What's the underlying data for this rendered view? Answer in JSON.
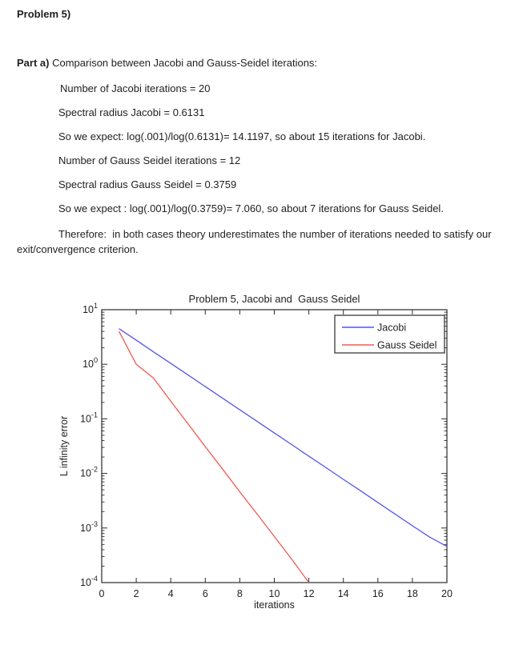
{
  "doc": {
    "heading": "Problem 5)",
    "part_a_label": "Part a)",
    "part_a_text": " Comparison between Jacobi and Gauss-Seidel iterations:",
    "lines": [
      "Number of Jacobi iterations = 20",
      "Spectral radius Jacobi = 0.6131",
      "So we expect: log(.001)/log(0.6131)= 14.1197, so about 15 iterations for Jacobi.",
      "Number of Gauss Seidel iterations = 12",
      "Spectral radius Gauss Seidel = 0.3759",
      "So we expect : log(.001)/log(0.3759)= 7.060, so about 7 iterations for Gauss Seidel.",
      "Therefore:  in both cases theory underestimates the number of iterations needed to satisfy our",
      "exit/convergence criterion."
    ]
  },
  "chart_data": {
    "type": "line",
    "title": "Problem 5, Jacobi and  Gauss Seidel",
    "xlabel": "iterations",
    "ylabel": "L infinity error",
    "x_range": [
      0,
      20
    ],
    "x_ticks": [
      0,
      2,
      4,
      6,
      8,
      10,
      12,
      14,
      16,
      18,
      20
    ],
    "y_scale": "log",
    "y_range": [
      0.0001,
      10
    ],
    "y_tick_exponents": [
      1,
      0,
      -1,
      -2,
      -3,
      -4
    ],
    "grid": false,
    "legend_position": "top-right",
    "axis_color": "#2a2a2a",
    "text_color": "#1f1f1f",
    "series": [
      {
        "name": "Jacobi",
        "color": "#5555ee",
        "x": [
          1,
          2,
          3,
          4,
          5,
          6,
          7,
          8,
          9,
          10,
          11,
          12,
          13,
          14,
          15,
          16,
          17,
          18,
          19,
          20
        ],
        "y": [
          4.5,
          2.76,
          1.69,
          1.037,
          0.636,
          0.39,
          0.239,
          0.1466,
          0.0899,
          0.0551,
          0.0338,
          0.0207,
          0.0127,
          0.0078,
          0.0048,
          0.00294,
          0.0018,
          0.0011,
          0.00068,
          0.00046
        ]
      },
      {
        "name": "Gauss Seidel",
        "color": "#f05a50",
        "x": [
          1,
          2,
          3,
          4,
          5,
          6,
          7,
          8,
          9,
          10,
          11,
          12
        ],
        "y": [
          4.0,
          1.0,
          0.56,
          0.21,
          0.081,
          0.031,
          0.012,
          0.0046,
          0.0018,
          0.0007,
          0.00027,
          0.0001
        ]
      }
    ]
  }
}
